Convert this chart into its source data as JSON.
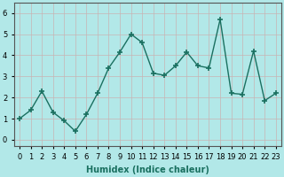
{
  "xlabel": "Humidex (Indice chaleur)",
  "x": [
    0,
    1,
    2,
    3,
    4,
    5,
    6,
    7,
    8,
    9,
    10,
    11,
    12,
    13,
    14,
    15,
    16,
    17,
    18,
    19,
    20,
    21,
    22,
    23
  ],
  "y": [
    1.0,
    1.4,
    2.3,
    1.3,
    0.9,
    0.4,
    1.2,
    2.2,
    3.4,
    4.15,
    5.0,
    4.6,
    3.15,
    3.05,
    3.5,
    4.15,
    3.5,
    3.4,
    5.7,
    2.2,
    2.15,
    4.2,
    1.85,
    2.2
  ],
  "line_color": "#1a7060",
  "marker": "+",
  "marker_size": 4,
  "background_color": "#b2e8e8",
  "grid_color": "#c8b4b4",
  "ylim": [
    -0.3,
    6.5
  ],
  "xlim": [
    -0.5,
    23.5
  ],
  "yticks": [
    0,
    1,
    2,
    3,
    4,
    5,
    6
  ],
  "xtick_labels": [
    "0",
    "1",
    "2",
    "3",
    "4",
    "5",
    "6",
    "7",
    "8",
    "9",
    "10",
    "11",
    "12",
    "13",
    "14",
    "15",
    "16",
    "17",
    "18",
    "19",
    "20",
    "21",
    "22",
    "23"
  ],
  "xlabel_fontsize": 7,
  "tick_fontsize": 6,
  "linewidth": 1.0
}
